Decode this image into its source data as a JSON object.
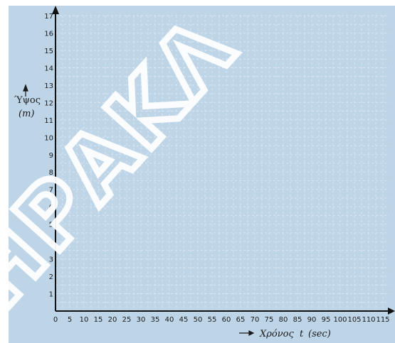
{
  "chart_data": {
    "type": "line",
    "series": [],
    "grid": true,
    "xlim": [
      0,
      115
    ],
    "ylim": [
      0,
      17
    ],
    "x_ticks": [
      "0",
      "5",
      "10",
      "15",
      "20",
      "25",
      "30",
      "35",
      "40",
      "45",
      "50",
      "55",
      "60",
      "65",
      "70",
      "75",
      "80",
      "85",
      "90",
      "95",
      "100",
      "105",
      "110",
      "115"
    ],
    "y_ticks": [
      "1",
      "2",
      "3",
      "4",
      "5",
      "6",
      "7",
      "8",
      "9",
      "10",
      "11",
      "12",
      "13",
      "14",
      "15",
      "16",
      "17"
    ],
    "xlabel_prefix": "Χρόνος",
    "xlabel_var": "t",
    "xlabel_unit": "(sec)",
    "ylabel_line1": "Ύψος",
    "ylabel_line2": "(m)"
  },
  "colors": {
    "panel_background": "#bed5e8",
    "grid": "#d9e7f2",
    "axis": "#111111",
    "watermark": "#ffffff"
  },
  "watermark_text": "ΗΡΑΚΛ"
}
